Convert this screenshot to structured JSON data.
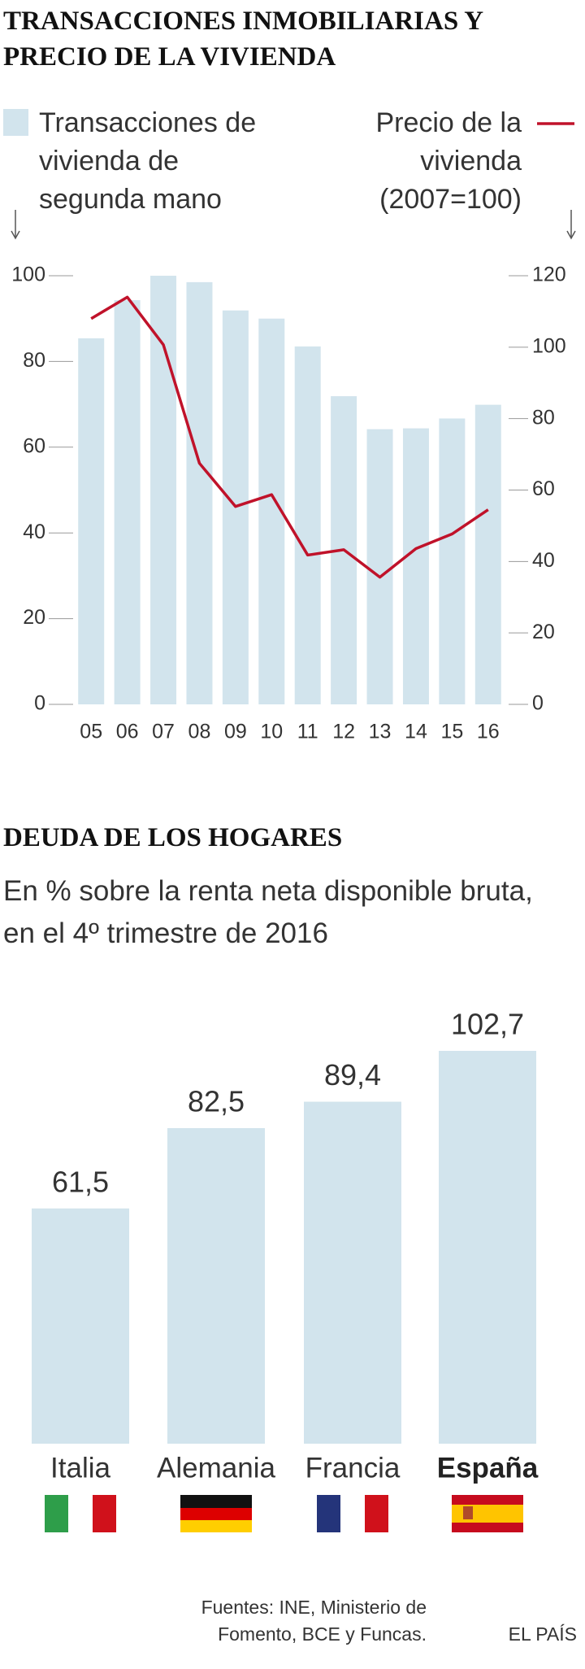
{
  "chart_data": [
    {
      "type": "combo",
      "title": "TRANSACCIONES INMOBILIARIAS Y PRECIO DE LA VIVIENDA",
      "categories": [
        "05",
        "06",
        "07",
        "08",
        "09",
        "10",
        "11",
        "12",
        "13",
        "14",
        "15",
        "16"
      ],
      "series": [
        {
          "name": "Transacciones de vivienda de segunda mano",
          "type": "bar",
          "color": "#d2e4ed",
          "values": [
            85.4,
            94.3,
            100,
            98.5,
            91.9,
            90,
            83.5,
            71.9,
            64.2,
            64.4,
            66.7,
            69.9
          ]
        },
        {
          "name": "Precio de la vivienda (2007=100)",
          "type": "line",
          "color": "#c0122a",
          "axis": "y2",
          "values": [
            108,
            114,
            100.7,
            67.5,
            55.4,
            58.7,
            41.8,
            43.3,
            35.6,
            43.6,
            47.7,
            54.5
          ]
        }
      ],
      "ylim": [
        0,
        100
      ],
      "yticks": [
        0,
        20,
        40,
        60,
        80,
        100
      ],
      "y2lim": [
        0,
        120
      ],
      "y2ticks": [
        0,
        20,
        40,
        60,
        80,
        100,
        120
      ]
    },
    {
      "type": "bar",
      "title": "DEUDA DE LOS HOGARES",
      "subtitle": "En % sobre la renta neta disponible bruta, en el 4º trimestre de 2016",
      "categories": [
        "Italia",
        "Alemania",
        "Francia",
        "España"
      ],
      "values": [
        61.5,
        82.5,
        89.4,
        102.7
      ],
      "value_labels": [
        "61,5",
        "82,5",
        "89,4",
        "102,7"
      ],
      "color": "#d2e4ed",
      "highlight_index": 3
    }
  ],
  "footer": {
    "source": "Fuentes: INE, Ministerio de Fomento, BCE y Funcas.",
    "brand": "EL PAÍS"
  }
}
